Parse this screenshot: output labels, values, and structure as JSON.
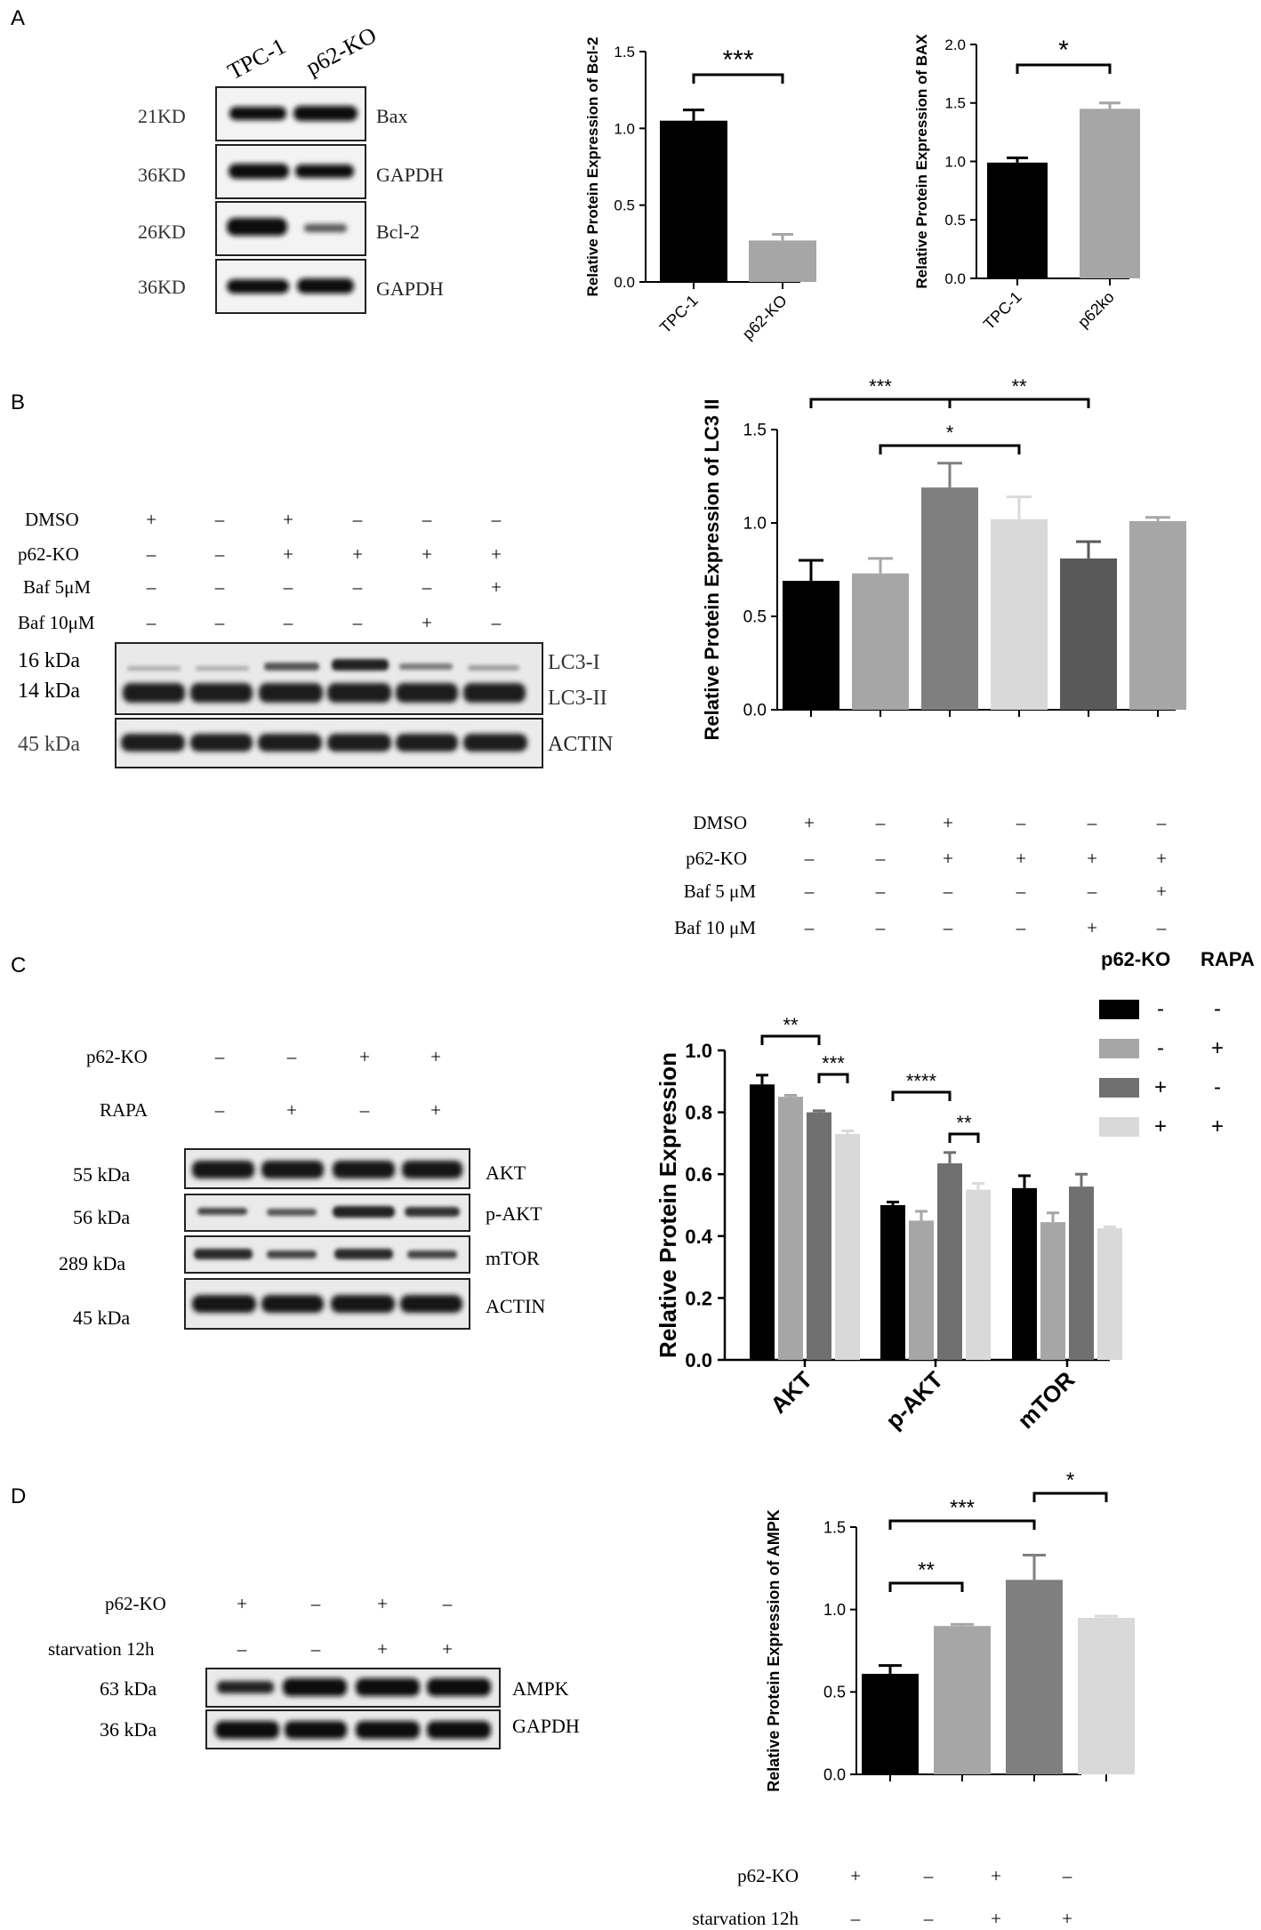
{
  "panels": {
    "A": "A",
    "B": "B",
    "C": "C",
    "D": "D"
  },
  "blot_A": {
    "lane_labels": [
      "TPC-1",
      "p62-KO"
    ],
    "rows": [
      {
        "size": "21KD",
        "name": "Bax"
      },
      {
        "size": "36KD",
        "name": "GAPDH"
      },
      {
        "size": "26KD",
        "name": "Bcl-2"
      },
      {
        "size": "36KD",
        "name": "GAPDH"
      }
    ]
  },
  "blot_B": {
    "conditions": [
      {
        "label": "DMSO",
        "marks": [
          "+",
          "–",
          "+",
          "–",
          "–",
          "–"
        ]
      },
      {
        "label": "p62-KO",
        "marks": [
          "–",
          "–",
          "+",
          "+",
          "+",
          "+"
        ]
      },
      {
        "label": "Baf 5μM",
        "marks": [
          "–",
          "–",
          "–",
          "–",
          "–",
          "+"
        ]
      },
      {
        "label": "Baf 10μM",
        "marks": [
          "–",
          "–",
          "–",
          "–",
          "+",
          "–"
        ]
      }
    ],
    "sizes": [
      "16 kDa",
      "14 kDa",
      "45 kDa"
    ],
    "band_names": [
      "LC3-I",
      "LC3-II",
      "ACTIN"
    ]
  },
  "blot_C": {
    "conditions": [
      {
        "label": "p62-KO",
        "marks": [
          "–",
          "–",
          "+",
          "+"
        ]
      },
      {
        "label": "RAPA",
        "marks": [
          "–",
          "+",
          "–",
          "+"
        ]
      }
    ],
    "rows": [
      {
        "size": "55 kDa",
        "name": "AKT"
      },
      {
        "size": "56 kDa",
        "name": "p-AKT"
      },
      {
        "size": "289 kDa",
        "name": "mTOR"
      },
      {
        "size": "45 kDa",
        "name": "ACTIN"
      }
    ]
  },
  "blot_D": {
    "conditions": [
      {
        "label": "p62-KO",
        "marks": [
          "+",
          "–",
          "+",
          "–"
        ]
      },
      {
        "label": "starvation 12h",
        "marks": [
          "–",
          "–",
          "+",
          "+"
        ]
      }
    ],
    "rows": [
      {
        "size": "63 kDa",
        "name": "AMPK"
      },
      {
        "size": "36 kDa",
        "name": "GAPDH"
      }
    ]
  },
  "legend_C": {
    "headers": [
      "p62-KO",
      "RAPA"
    ],
    "rows": [
      {
        "color": "#000000",
        "p62ko": "-",
        "rapa": "-"
      },
      {
        "color": "#a6a6a6",
        "p62ko": "-",
        "rapa": "+"
      },
      {
        "color": "#707070",
        "p62ko": "+",
        "rapa": "-"
      },
      {
        "color": "#d9d9d9",
        "p62ko": "+",
        "rapa": "+"
      }
    ]
  },
  "chart_data": [
    {
      "id": "A1",
      "type": "bar",
      "categories": [
        "TPC-1",
        "p62-KO"
      ],
      "values": [
        1.05,
        0.27
      ],
      "errors": [
        0.07,
        0.04
      ],
      "colors": [
        "#000000",
        "#a6a6a6"
      ],
      "ylabel": "Relative Protein Expression of  Bcl-2",
      "ylim": [
        0,
        1.5
      ],
      "yticks": [
        "0.0",
        "0.5",
        "1.0",
        "1.5"
      ],
      "significance": [
        {
          "from": 0,
          "to": 1,
          "label": "***"
        }
      ]
    },
    {
      "id": "A2",
      "type": "bar",
      "categories": [
        "TPC-1",
        "p62ko"
      ],
      "values": [
        0.99,
        1.45
      ],
      "errors": [
        0.04,
        0.05
      ],
      "colors": [
        "#000000",
        "#a6a6a6"
      ],
      "ylabel": "Relative Protein Expression of  BAX",
      "ylim": [
        0,
        2.0
      ],
      "yticks": [
        "0.0",
        "0.5",
        "1.0",
        "1.5",
        "2.0"
      ],
      "significance": [
        {
          "from": 0,
          "to": 1,
          "label": "*"
        }
      ]
    },
    {
      "id": "B",
      "type": "bar",
      "values": [
        0.69,
        0.73,
        1.19,
        1.02,
        0.81,
        1.01
      ],
      "errors": [
        0.11,
        0.08,
        0.13,
        0.12,
        0.09,
        0.02
      ],
      "colors": [
        "#000000",
        "#a6a6a6",
        "#7f7f7f",
        "#d9d9d9",
        "#595959",
        "#a6a6a6"
      ],
      "ylabel": "Relative Protein Expression of LC3 II",
      "ylim": [
        0,
        1.5
      ],
      "yticks": [
        "0.0",
        "0.5",
        "1.0",
        "1.5"
      ],
      "significance": [
        {
          "from": 0,
          "to": 2,
          "label": "***"
        },
        {
          "from": 2,
          "to": 4,
          "label": "**"
        },
        {
          "from": 1,
          "to": 3,
          "label": "*"
        }
      ],
      "conditions": [
        {
          "label": "DMSO",
          "marks": [
            "+",
            "–",
            "+",
            "–",
            "–",
            "–"
          ]
        },
        {
          "label": "p62-KO",
          "marks": [
            "–",
            "–",
            "+",
            "+",
            "+",
            "+"
          ]
        },
        {
          "label": "Baf 5 μM",
          "marks": [
            "–",
            "–",
            "–",
            "–",
            "–",
            "+"
          ]
        },
        {
          "label": "Baf 10 μM",
          "marks": [
            "–",
            "–",
            "–",
            "–",
            "+",
            "–"
          ]
        }
      ]
    },
    {
      "id": "C",
      "type": "bar",
      "categories": [
        "AKT",
        "p-AKT",
        "mTOR"
      ],
      "series": [
        {
          "values": [
            0.89,
            0.5,
            0.555
          ],
          "errors": [
            0.03,
            0.01,
            0.04
          ],
          "color": "#000000"
        },
        {
          "values": [
            0.85,
            0.45,
            0.445
          ],
          "errors": [
            0.005,
            0.03,
            0.03
          ],
          "color": "#a6a6a6"
        },
        {
          "values": [
            0.8,
            0.635,
            0.56
          ],
          "errors": [
            0.005,
            0.035,
            0.04
          ],
          "color": "#707070"
        },
        {
          "values": [
            0.73,
            0.55,
            0.425
          ],
          "errors": [
            0.01,
            0.02,
            0.005
          ],
          "color": "#d9d9d9"
        }
      ],
      "ylabel": "Relative Protein Expression",
      "ylim": [
        0,
        1.0
      ],
      "yticks": [
        "0.0",
        "0.2",
        "0.4",
        "0.6",
        "0.8",
        "1.0"
      ],
      "significance": [
        {
          "group": 0,
          "from": 0,
          "to": 2,
          "label": "**"
        },
        {
          "group": 0,
          "from": 2,
          "to": 3,
          "label": "***"
        },
        {
          "group": 1,
          "from": 0,
          "to": 2,
          "label": "****"
        },
        {
          "group": 1,
          "from": 2,
          "to": 3,
          "label": "**"
        }
      ]
    },
    {
      "id": "D",
      "type": "bar",
      "values": [
        0.61,
        0.9,
        1.18,
        0.95
      ],
      "errors": [
        0.05,
        0.01,
        0.15,
        0.01
      ],
      "colors": [
        "#000000",
        "#a6a6a6",
        "#7f7f7f",
        "#d9d9d9"
      ],
      "ylabel": "Relative Protein Expression of  AMPK",
      "ylim": [
        0,
        1.5
      ],
      "yticks": [
        "0.0",
        "0.5",
        "1.0",
        "1.5"
      ],
      "significance": [
        {
          "from": 0,
          "to": 1,
          "label": "**"
        },
        {
          "from": 0,
          "to": 2,
          "label": "***"
        },
        {
          "from": 2,
          "to": 3,
          "label": "*"
        }
      ],
      "conditions": [
        {
          "label": "p62-KO",
          "marks": [
            "+",
            "–",
            "+",
            "–"
          ]
        },
        {
          "label": "starvation 12h",
          "marks": [
            "–",
            "–",
            "+",
            "+"
          ]
        }
      ]
    }
  ]
}
